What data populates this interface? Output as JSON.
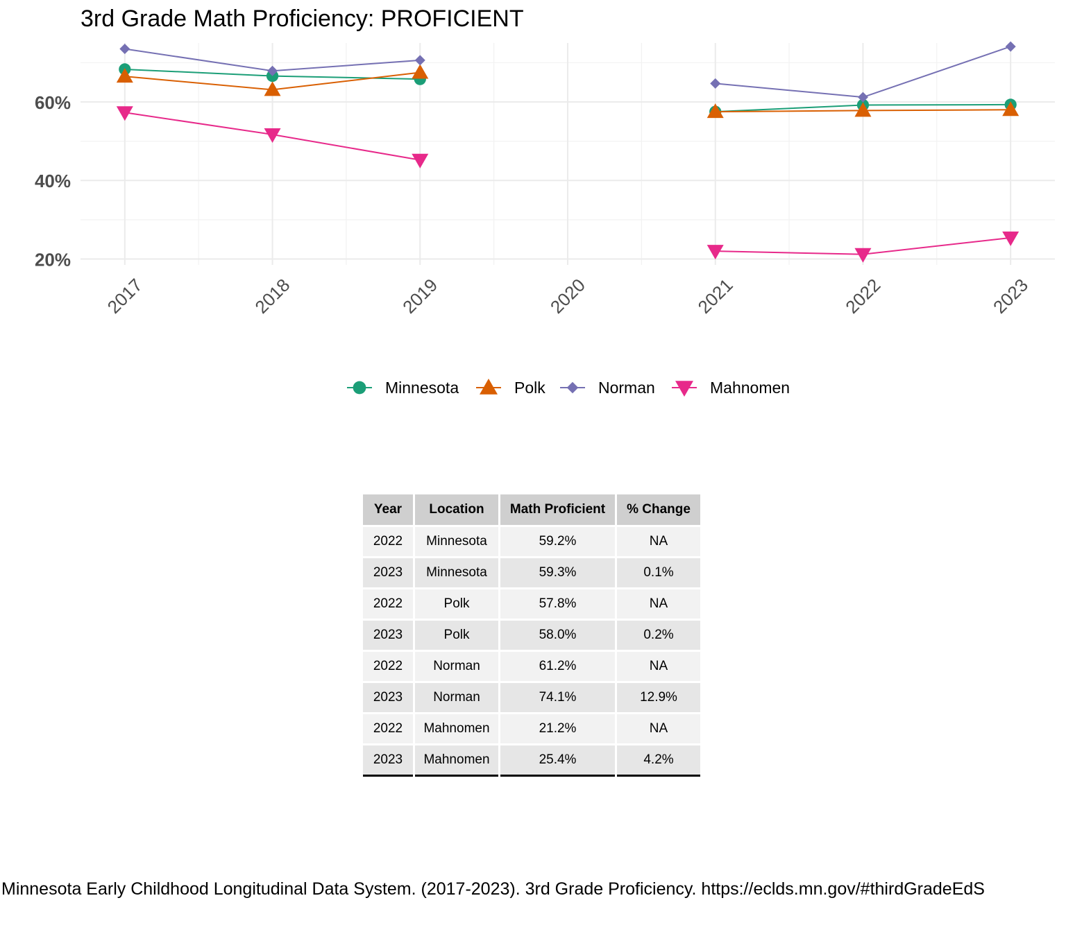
{
  "chart_data": {
    "type": "line",
    "title": "3rd Grade Math Proficiency: PROFICIENT",
    "xlabel": "",
    "ylabel": "",
    "x": [
      2017,
      2018,
      2019,
      2020,
      2021,
      2022,
      2023
    ],
    "x_tick_labels": [
      "2017",
      "2018",
      "2019",
      "2020",
      "2021",
      "2022",
      "2023"
    ],
    "y_tick_labels": [
      "20%",
      "40%",
      "60%"
    ],
    "y_ticks": [
      20,
      40,
      60
    ],
    "ylim": [
      18.5,
      75
    ],
    "grid": true,
    "legend_position": "bottom",
    "series": [
      {
        "name": "Minnesota",
        "color": "#1B9E77",
        "marker": "circle",
        "values": [
          68.3,
          66.6,
          65.8,
          null,
          57.5,
          59.2,
          59.3
        ]
      },
      {
        "name": "Polk",
        "color": "#D95F02",
        "marker": "triangle-up",
        "values": [
          66.5,
          63.1,
          67.5,
          null,
          57.5,
          57.8,
          58.0
        ]
      },
      {
        "name": "Norman",
        "color": "#7570B3",
        "marker": "diamond",
        "values": [
          73.5,
          67.9,
          70.6,
          null,
          64.7,
          61.2,
          74.1
        ]
      },
      {
        "name": "Mahnomen",
        "color": "#E7298A",
        "marker": "triangle-down",
        "values": [
          57.3,
          51.7,
          45.2,
          null,
          22.0,
          21.2,
          25.4
        ]
      }
    ]
  },
  "table": {
    "headers": [
      "Year",
      "Location",
      "Math Proficient",
      "% Change"
    ],
    "rows": [
      [
        "2022",
        "Minnesota",
        "59.2%",
        "NA"
      ],
      [
        "2023",
        "Minnesota",
        "59.3%",
        "0.1%"
      ],
      [
        "2022",
        "Polk",
        "57.8%",
        "NA"
      ],
      [
        "2023",
        "Polk",
        "58.0%",
        "0.2%"
      ],
      [
        "2022",
        "Norman",
        "61.2%",
        "NA"
      ],
      [
        "2023",
        "Norman",
        "74.1%",
        "12.9%"
      ],
      [
        "2022",
        "Mahnomen",
        "21.2%",
        "NA"
      ],
      [
        "2023",
        "Mahnomen",
        "25.4%",
        "4.2%"
      ]
    ]
  },
  "caption": "Minnesota Early Childhood Longitudinal Data System. (2017-2023). 3rd Grade Proficiency. https://eclds.mn.gov/#thirdGradeEdS"
}
